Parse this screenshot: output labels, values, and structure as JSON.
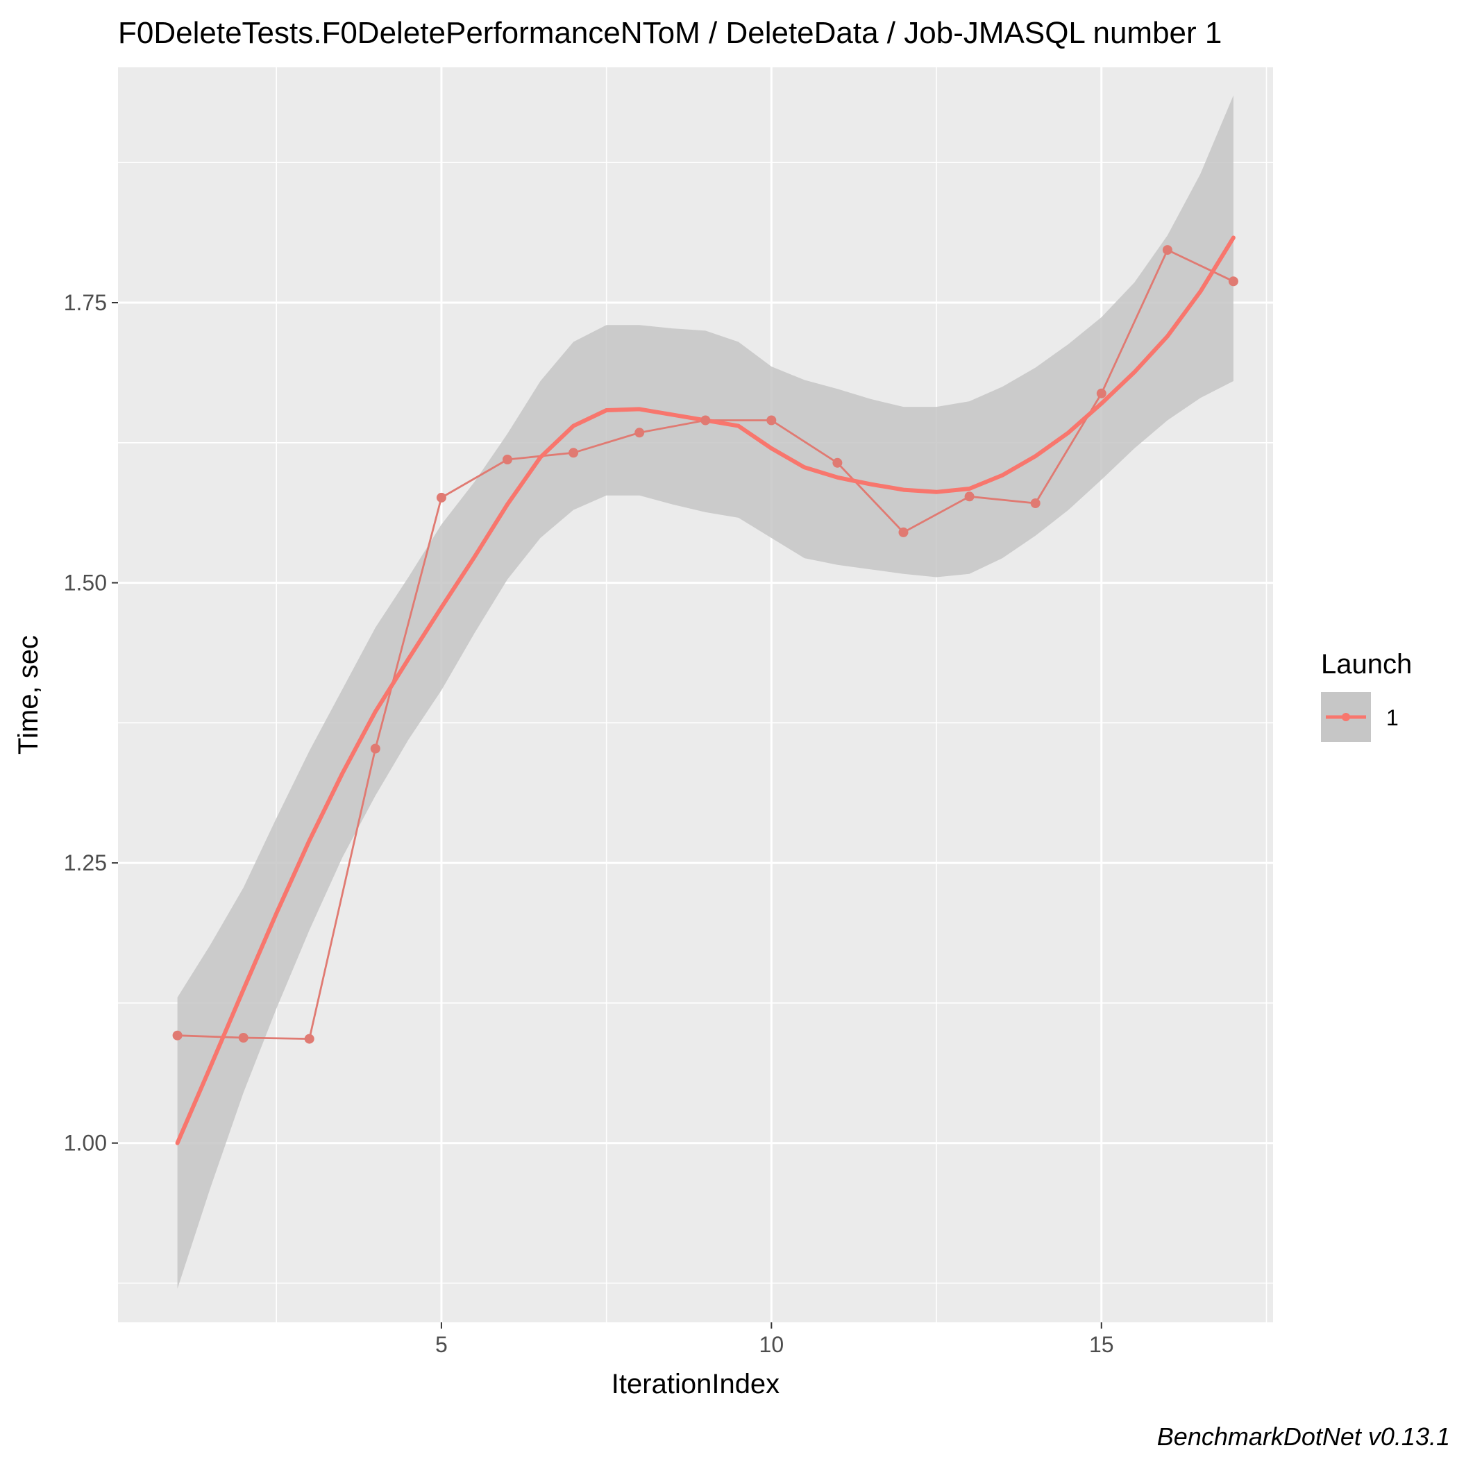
{
  "chart_data": {
    "type": "line",
    "title": "F0DeleteTests.F0DeletePerformanceNToM / DeleteData / Job-JMASQL number 1",
    "xlabel": "IterationIndex",
    "ylabel": "Time, sec",
    "caption": "BenchmarkDotNet v0.13.1",
    "xlim": [
      0.1,
      17.6
    ],
    "ylim": [
      0.84,
      1.96
    ],
    "x_ticks": [
      5,
      10,
      15
    ],
    "x_tick_labels": [
      "5",
      "10",
      "15"
    ],
    "y_ticks": [
      1.0,
      1.25,
      1.5,
      1.75
    ],
    "y_tick_labels": [
      "1.00",
      "1.25",
      "1.50",
      "1.75"
    ],
    "grid": true,
    "legend": {
      "title": "Launch",
      "position": "right",
      "entries": [
        "1"
      ]
    },
    "colors": {
      "series": "#f8766d",
      "observed": "#e07a72",
      "band": "#c6c6c6",
      "panel": "#ebebeb",
      "grid": "#ffffff"
    },
    "series": [
      {
        "name": "1",
        "x": [
          1,
          2,
          3,
          4,
          5,
          6,
          7,
          8,
          9,
          10,
          11,
          12,
          13,
          14,
          15,
          16,
          17
        ],
        "y": [
          1.096,
          1.094,
          1.093,
          1.352,
          1.576,
          1.61,
          1.616,
          1.634,
          1.645,
          1.645,
          1.607,
          1.545,
          1.577,
          1.571,
          1.669,
          1.797,
          1.769
        ]
      }
    ],
    "smooth": {
      "x": [
        1,
        1.5,
        2,
        2.5,
        3,
        3.5,
        4,
        4.5,
        5,
        5.5,
        6,
        6.5,
        7,
        7.5,
        8,
        8.5,
        9,
        9.5,
        10,
        10.5,
        11,
        11.5,
        12,
        12.5,
        13,
        13.5,
        14,
        14.5,
        15,
        15.5,
        16,
        16.5,
        17
      ],
      "y": [
        1.0,
        1.068,
        1.137,
        1.205,
        1.27,
        1.33,
        1.385,
        1.432,
        1.478,
        1.523,
        1.57,
        1.612,
        1.64,
        1.654,
        1.655,
        1.65,
        1.645,
        1.64,
        1.62,
        1.603,
        1.594,
        1.588,
        1.583,
        1.581,
        1.584,
        1.596,
        1.613,
        1.634,
        1.66,
        1.688,
        1.72,
        1.76,
        1.808
      ],
      "lower": [
        0.87,
        0.96,
        1.045,
        1.12,
        1.19,
        1.255,
        1.31,
        1.36,
        1.404,
        1.455,
        1.503,
        1.54,
        1.565,
        1.578,
        1.578,
        1.57,
        1.563,
        1.558,
        1.54,
        1.522,
        1.516,
        1.512,
        1.508,
        1.505,
        1.508,
        1.522,
        1.542,
        1.565,
        1.592,
        1.62,
        1.645,
        1.665,
        1.68
      ],
      "upper": [
        1.13,
        1.177,
        1.228,
        1.29,
        1.35,
        1.405,
        1.46,
        1.505,
        1.552,
        1.59,
        1.633,
        1.68,
        1.715,
        1.73,
        1.73,
        1.727,
        1.725,
        1.715,
        1.693,
        1.681,
        1.673,
        1.664,
        1.657,
        1.657,
        1.662,
        1.675,
        1.692,
        1.713,
        1.737,
        1.768,
        1.81,
        1.865,
        1.935
      ]
    }
  }
}
